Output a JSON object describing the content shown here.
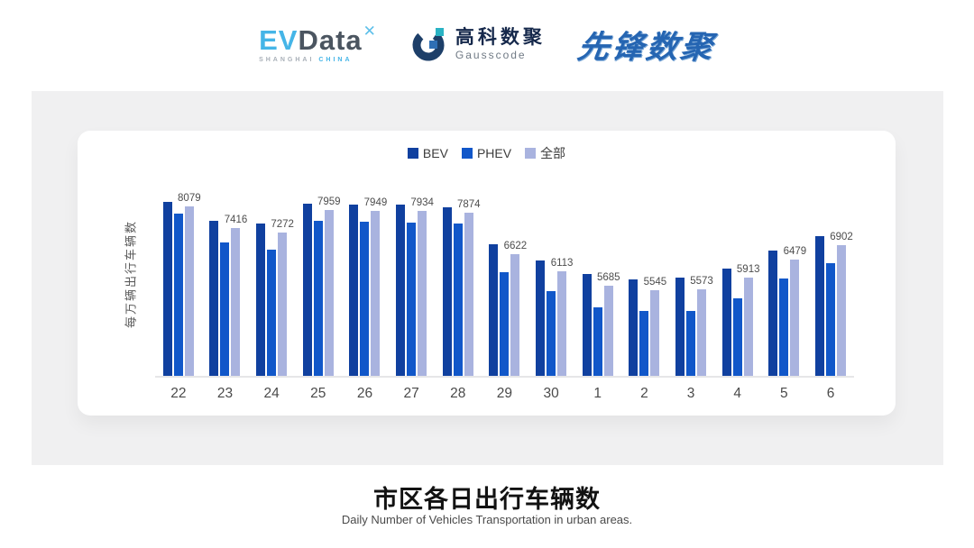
{
  "header": {
    "evdata_logo": {
      "ev": "EV",
      "data": "Data",
      "mark": "✕",
      "sub_left": "SHANGHAI",
      "sub_right": "CHINA"
    },
    "gausscode_logo": {
      "cn": "高科数聚",
      "en": "Gausscode"
    },
    "pioneer_logo": {
      "text": "先锋数聚"
    }
  },
  "chart_data": {
    "type": "bar",
    "title": "市区各日出行车辆数",
    "subtitle": "Daily Number of Vehicles Transportation in urban areas.",
    "ylabel": "每万辆出行车辆数",
    "categories": [
      "22",
      "23",
      "24",
      "25",
      "26",
      "27",
      "28",
      "29",
      "30",
      "1",
      "2",
      "3",
      "4",
      "5",
      "6"
    ],
    "series": [
      {
        "name": "BEV",
        "color": "#10409f",
        "values": [
          8220,
          7640,
          7560,
          8160,
          8130,
          8130,
          8050,
          6940,
          6440,
          6040,
          5870,
          5930,
          6200,
          6740,
          7180
        ]
      },
      {
        "name": "PHEV",
        "color": "#1157c9",
        "values": [
          7860,
          6990,
          6770,
          7640,
          7620,
          7590,
          7560,
          6090,
          5520,
          5030,
          4920,
          4920,
          5300,
          5900,
          6360
        ]
      },
      {
        "name": "全部",
        "color": "#a9b3df",
        "labeled": true,
        "values": [
          8079,
          7416,
          7272,
          7959,
          7949,
          7934,
          7874,
          6622,
          6113,
          5685,
          5545,
          5573,
          5913,
          6479,
          6902
        ]
      }
    ],
    "data_labels_series": "全部",
    "value_axis": {
      "min": 2950,
      "max": 9220,
      "ticks_visible": false,
      "gridlines": false
    },
    "legend_position": "top-center",
    "note": "BEV and PHEV values estimated from bar heights; 全部 values are the printed data labels"
  }
}
